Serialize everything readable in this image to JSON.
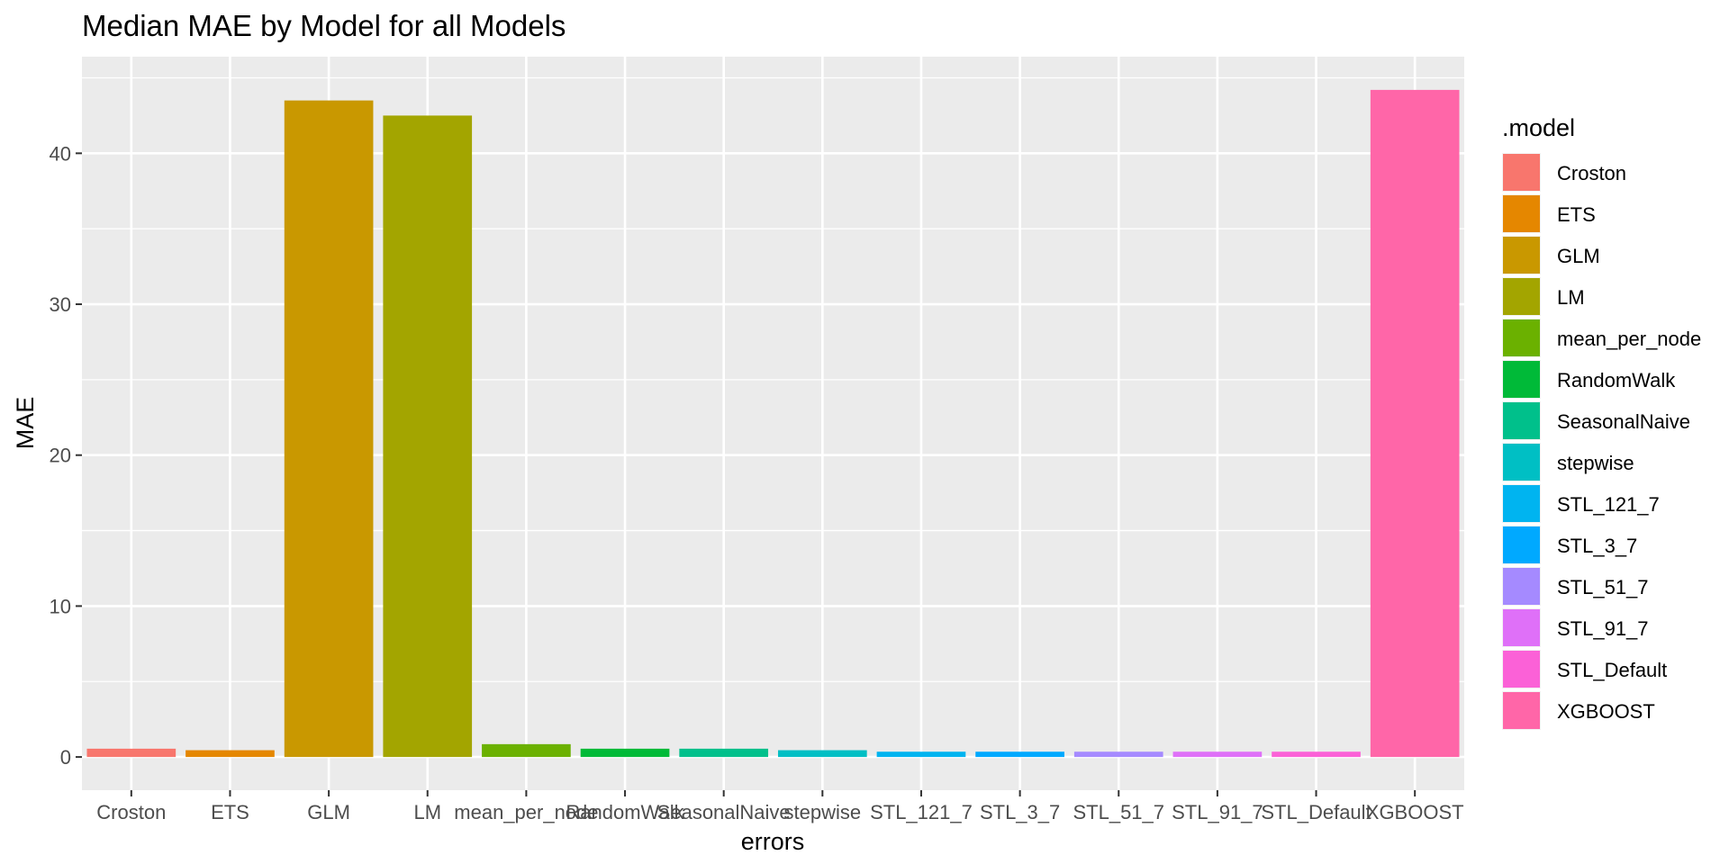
{
  "chart_data": {
    "type": "bar",
    "title": "Median MAE by Model for all Models",
    "xlabel": "errors",
    "ylabel": "MAE",
    "ylim": [
      -2.2,
      46.4
    ],
    "yticks": [
      0,
      10,
      20,
      30,
      40
    ],
    "grid": true,
    "legend_title": ".model",
    "legend_position": "right",
    "categories": [
      "Croston",
      "ETS",
      "GLM",
      "LM",
      "mean_per_node",
      "RandomWalk",
      "SeasonalNaive",
      "stepwise",
      "STL_121_7",
      "STL_3_7",
      "STL_51_7",
      "STL_91_7",
      "STL_Default",
      "XGBOOST"
    ],
    "values": [
      0.55,
      0.45,
      43.5,
      42.5,
      0.85,
      0.55,
      0.55,
      0.45,
      0.35,
      0.35,
      0.35,
      0.35,
      0.35,
      44.2
    ],
    "colors": [
      "#F8766D",
      "#E58700",
      "#C99800",
      "#A3A500",
      "#6BB100",
      "#00BA38",
      "#00C08B",
      "#00BFC4",
      "#00B4F0",
      "#00A9FF",
      "#A58AFF",
      "#DF70F8",
      "#FB61D7",
      "#FF66A8"
    ]
  }
}
